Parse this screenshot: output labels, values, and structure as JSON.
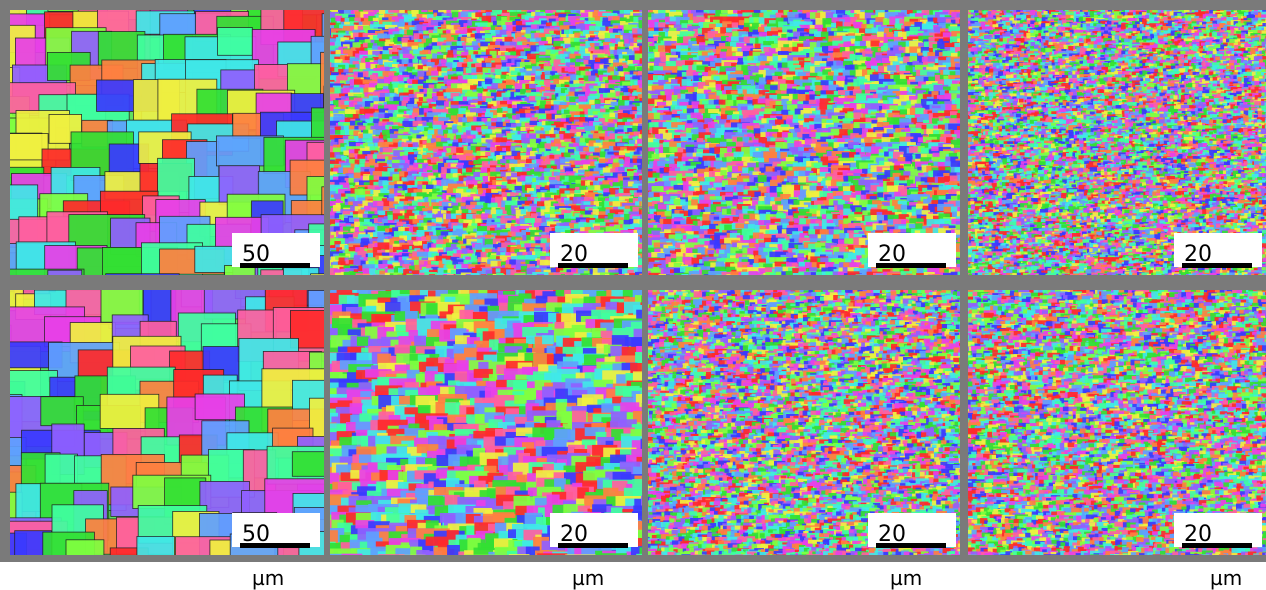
{
  "panels": [
    [
      {
        "scale_label": "50"
      },
      {
        "scale_label": "20"
      },
      {
        "scale_label": "20"
      },
      {
        "scale_label": "20"
      }
    ],
    [
      {
        "scale_label": "50"
      },
      {
        "scale_label": "20"
      },
      {
        "scale_label": "20"
      },
      {
        "scale_label": "20"
      }
    ]
  ],
  "units": [
    "µm",
    "µm",
    "µm",
    "µm"
  ]
}
